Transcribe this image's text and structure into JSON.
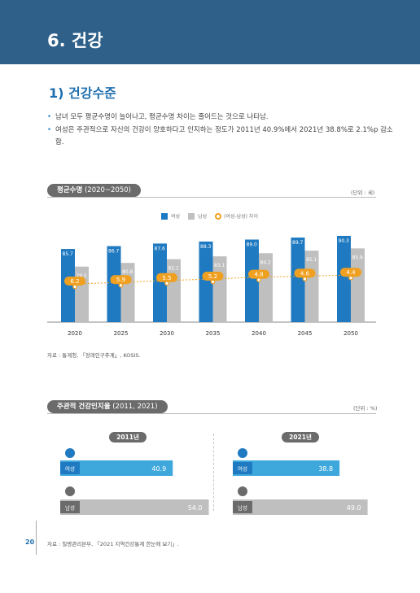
{
  "header": {
    "title": "6. 건강"
  },
  "section": {
    "title": "1) 건강수준"
  },
  "bullets": [
    "남녀 모두 평균수명이 늘어나고, 평균수명 차이는 줄어드는 것으로 나타남.",
    "여성은 주관적으로 자신의 건강이 양호하다고 인지하는 정도가 2011년 40.9%에서 2021년 38.8%로 2.1%p 감소함."
  ],
  "life_chart": {
    "pill_main": "평균수명",
    "pill_sub": " (2020~2050)",
    "unit": "(단위 : 세)",
    "source": "자료 : 통계청, 「장래인구추계」, KOSIS."
  },
  "health_chart": {
    "pill_main": "주관적 건강인지율",
    "pill_sub": " (2011, 2021)",
    "unit": "(단위 : %)",
    "source": "자료 : 질병관리본부, 「2021 지역건강통계 한눈에 보기」.",
    "female_label": "여성",
    "male_label": "남성"
  },
  "page_number": "20",
  "colors": {
    "female": "#1f7ac1",
    "male": "#bfbfbf",
    "diff": "#f0a020",
    "header": "#2e6089",
    "female_light": "#3ea8dc"
  },
  "chart_data": [
    {
      "type": "bar",
      "categories": [
        "2020",
        "2025",
        "2030",
        "2035",
        "2040",
        "2045",
        "2050"
      ],
      "series": [
        {
          "name": "여성",
          "values": [
            85.7,
            86.7,
            87.6,
            88.3,
            89.0,
            89.7,
            90.3
          ]
        },
        {
          "name": "남성",
          "values": [
            79.5,
            80.8,
            82.1,
            83.1,
            84.2,
            85.1,
            85.9
          ]
        },
        {
          "name": "(여성-남성) 차이",
          "values": [
            6.2,
            5.9,
            5.5,
            5.2,
            4.8,
            4.6,
            4.4
          ]
        }
      ],
      "ylim": [
        0,
        100
      ]
    },
    {
      "type": "bar",
      "categories": [
        "2011년",
        "2021년"
      ],
      "series": [
        {
          "name": "여성",
          "values": [
            40.9,
            38.8
          ]
        },
        {
          "name": "남성",
          "values": [
            54.0,
            49.0
          ]
        }
      ],
      "xlim": [
        0,
        60
      ]
    }
  ]
}
